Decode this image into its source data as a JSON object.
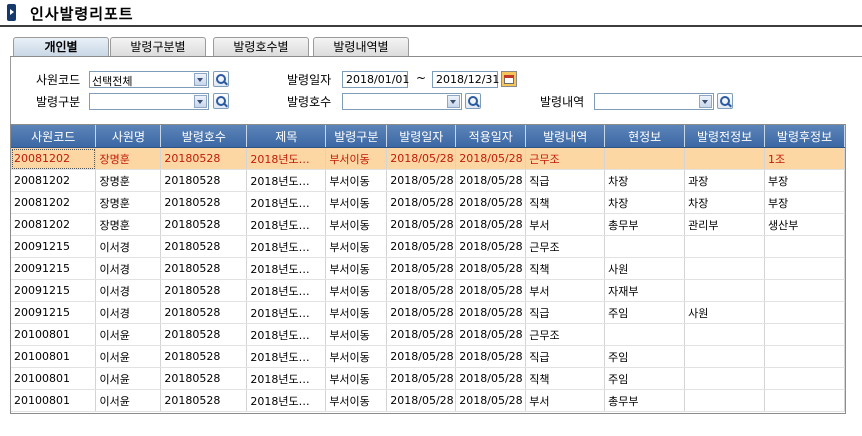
{
  "window": {
    "title": "인사발령리포트"
  },
  "tabs": [
    {
      "label": "개인별",
      "active": true
    },
    {
      "label": "발령구분별",
      "active": false
    },
    {
      "label": "발령호수별",
      "active": false
    },
    {
      "label": "발령내역별",
      "active": false
    }
  ],
  "filters": {
    "employee_code": {
      "label": "사원코드",
      "value": "선택전체"
    },
    "appoint_type": {
      "label": "발령구분",
      "value": ""
    },
    "appoint_date": {
      "label": "발령일자",
      "from": "2018/01/01",
      "separator": "~",
      "to": "2018/12/31"
    },
    "appoint_no": {
      "label": "발령호수",
      "value": ""
    },
    "appoint_detail": {
      "label": "발령내역",
      "value": ""
    }
  },
  "table": {
    "columns": [
      "사원코드",
      "사원명",
      "발령호수",
      "제목",
      "발령구분",
      "발령일자",
      "적용일자",
      "발령내역",
      "현정보",
      "발령전정보",
      "발령후정보"
    ],
    "rows": [
      [
        "20081202",
        "장명훈",
        "20180528",
        "2018년도…",
        "부서이동",
        "2018/05/28",
        "2018/05/28",
        "근무조",
        "",
        "",
        "1조"
      ],
      [
        "20081202",
        "장명훈",
        "20180528",
        "2018년도…",
        "부서이동",
        "2018/05/28",
        "2018/05/28",
        "직급",
        "차장",
        "과장",
        "부장"
      ],
      [
        "20081202",
        "장명훈",
        "20180528",
        "2018년도…",
        "부서이동",
        "2018/05/28",
        "2018/05/28",
        "직책",
        "차장",
        "차장",
        "부장"
      ],
      [
        "20081202",
        "장명훈",
        "20180528",
        "2018년도…",
        "부서이동",
        "2018/05/28",
        "2018/05/28",
        "부서",
        "총무부",
        "관리부",
        "생산부"
      ],
      [
        "20091215",
        "이서경",
        "20180528",
        "2018년도…",
        "부서이동",
        "2018/05/28",
        "2018/05/28",
        "근무조",
        "",
        "",
        ""
      ],
      [
        "20091215",
        "이서경",
        "20180528",
        "2018년도…",
        "부서이동",
        "2018/05/28",
        "2018/05/28",
        "직책",
        "사원",
        "",
        ""
      ],
      [
        "20091215",
        "이서경",
        "20180528",
        "2018년도…",
        "부서이동",
        "2018/05/28",
        "2018/05/28",
        "부서",
        "자재부",
        "",
        ""
      ],
      [
        "20091215",
        "이서경",
        "20180528",
        "2018년도…",
        "부서이동",
        "2018/05/28",
        "2018/05/28",
        "직급",
        "주임",
        "사원",
        ""
      ],
      [
        "20100801",
        "이서윤",
        "20180528",
        "2018년도…",
        "부서이동",
        "2018/05/28",
        "2018/05/28",
        "근무조",
        "",
        "",
        ""
      ],
      [
        "20100801",
        "이서윤",
        "20180528",
        "2018년도…",
        "부서이동",
        "2018/05/28",
        "2018/05/28",
        "직급",
        "주임",
        "",
        ""
      ],
      [
        "20100801",
        "이서윤",
        "20180528",
        "2018년도…",
        "부서이동",
        "2018/05/28",
        "2018/05/28",
        "직책",
        "주임",
        "",
        ""
      ],
      [
        "20100801",
        "이서윤",
        "20180528",
        "2018년도…",
        "부서이동",
        "2018/05/28",
        "2018/05/28",
        "부서",
        "총무부",
        "",
        ""
      ]
    ],
    "selected_row": 0
  },
  "colors": {
    "header_bg": "#4a75ae",
    "selected_row_bg": "#fcd7a4",
    "selected_row_text": "#c11b05",
    "title_rule": "#3d3d3d"
  }
}
